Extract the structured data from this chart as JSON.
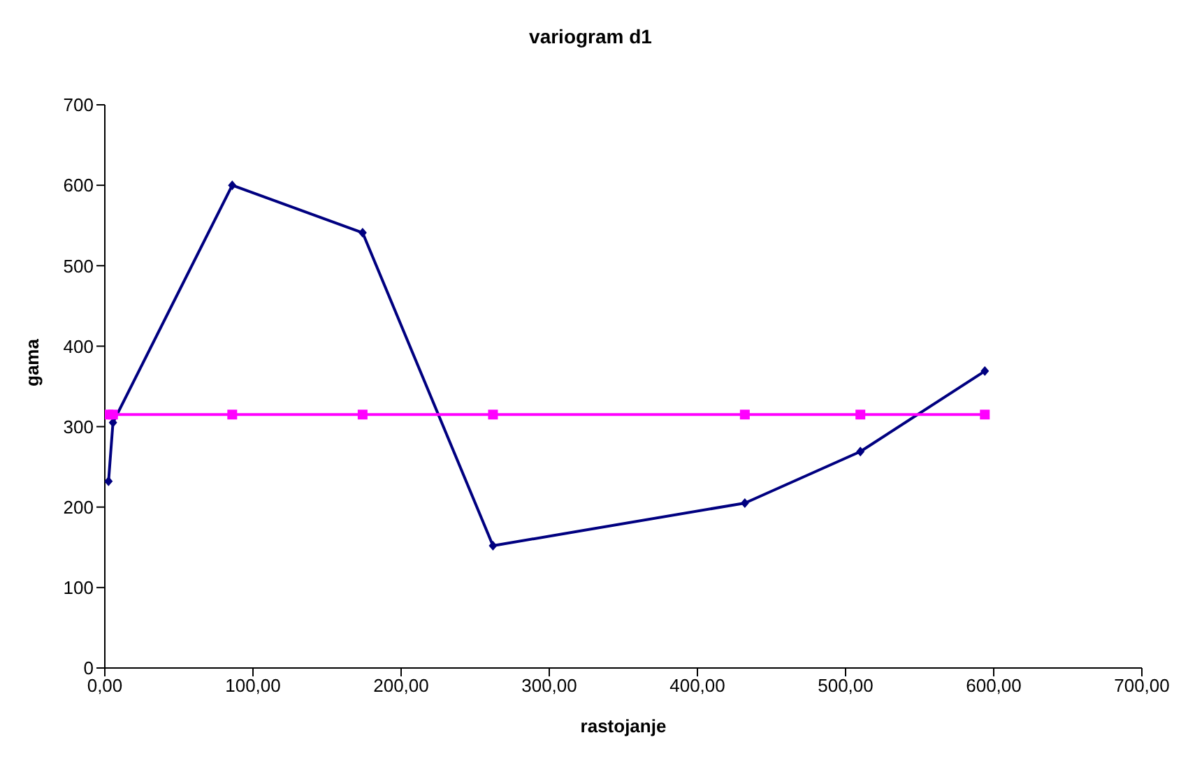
{
  "chart_data": {
    "type": "line",
    "title": "variogram d1",
    "xlabel": "rastojanje",
    "ylabel": "gama",
    "x": [
      2.5,
      5.5,
      86,
      174,
      262,
      432,
      510,
      594
    ],
    "series": [
      {
        "color": "#000080",
        "marker": "diamond",
        "values": [
          232,
          305,
          600,
          541,
          152,
          205,
          269,
          369
        ]
      },
      {
        "color": "#ff00ff",
        "marker": "square",
        "values": [
          315,
          315,
          315,
          315,
          315,
          315,
          315,
          315
        ]
      }
    ],
    "xlim": [
      0,
      700
    ],
    "xticks": [
      {
        "value": 0,
        "label": "0,00"
      },
      {
        "value": 100,
        "label": "100,00"
      },
      {
        "value": 200,
        "label": "200,00"
      },
      {
        "value": 300,
        "label": "300,00"
      },
      {
        "value": 400,
        "label": "400,00"
      },
      {
        "value": 500,
        "label": "500,00"
      },
      {
        "value": 600,
        "label": "600,00"
      },
      {
        "value": 700,
        "label": "700,00"
      }
    ],
    "ylim": [
      0,
      700
    ],
    "yticks": [
      0,
      100,
      200,
      300,
      400,
      500,
      600,
      700
    ],
    "grid": false,
    "legend": false
  }
}
